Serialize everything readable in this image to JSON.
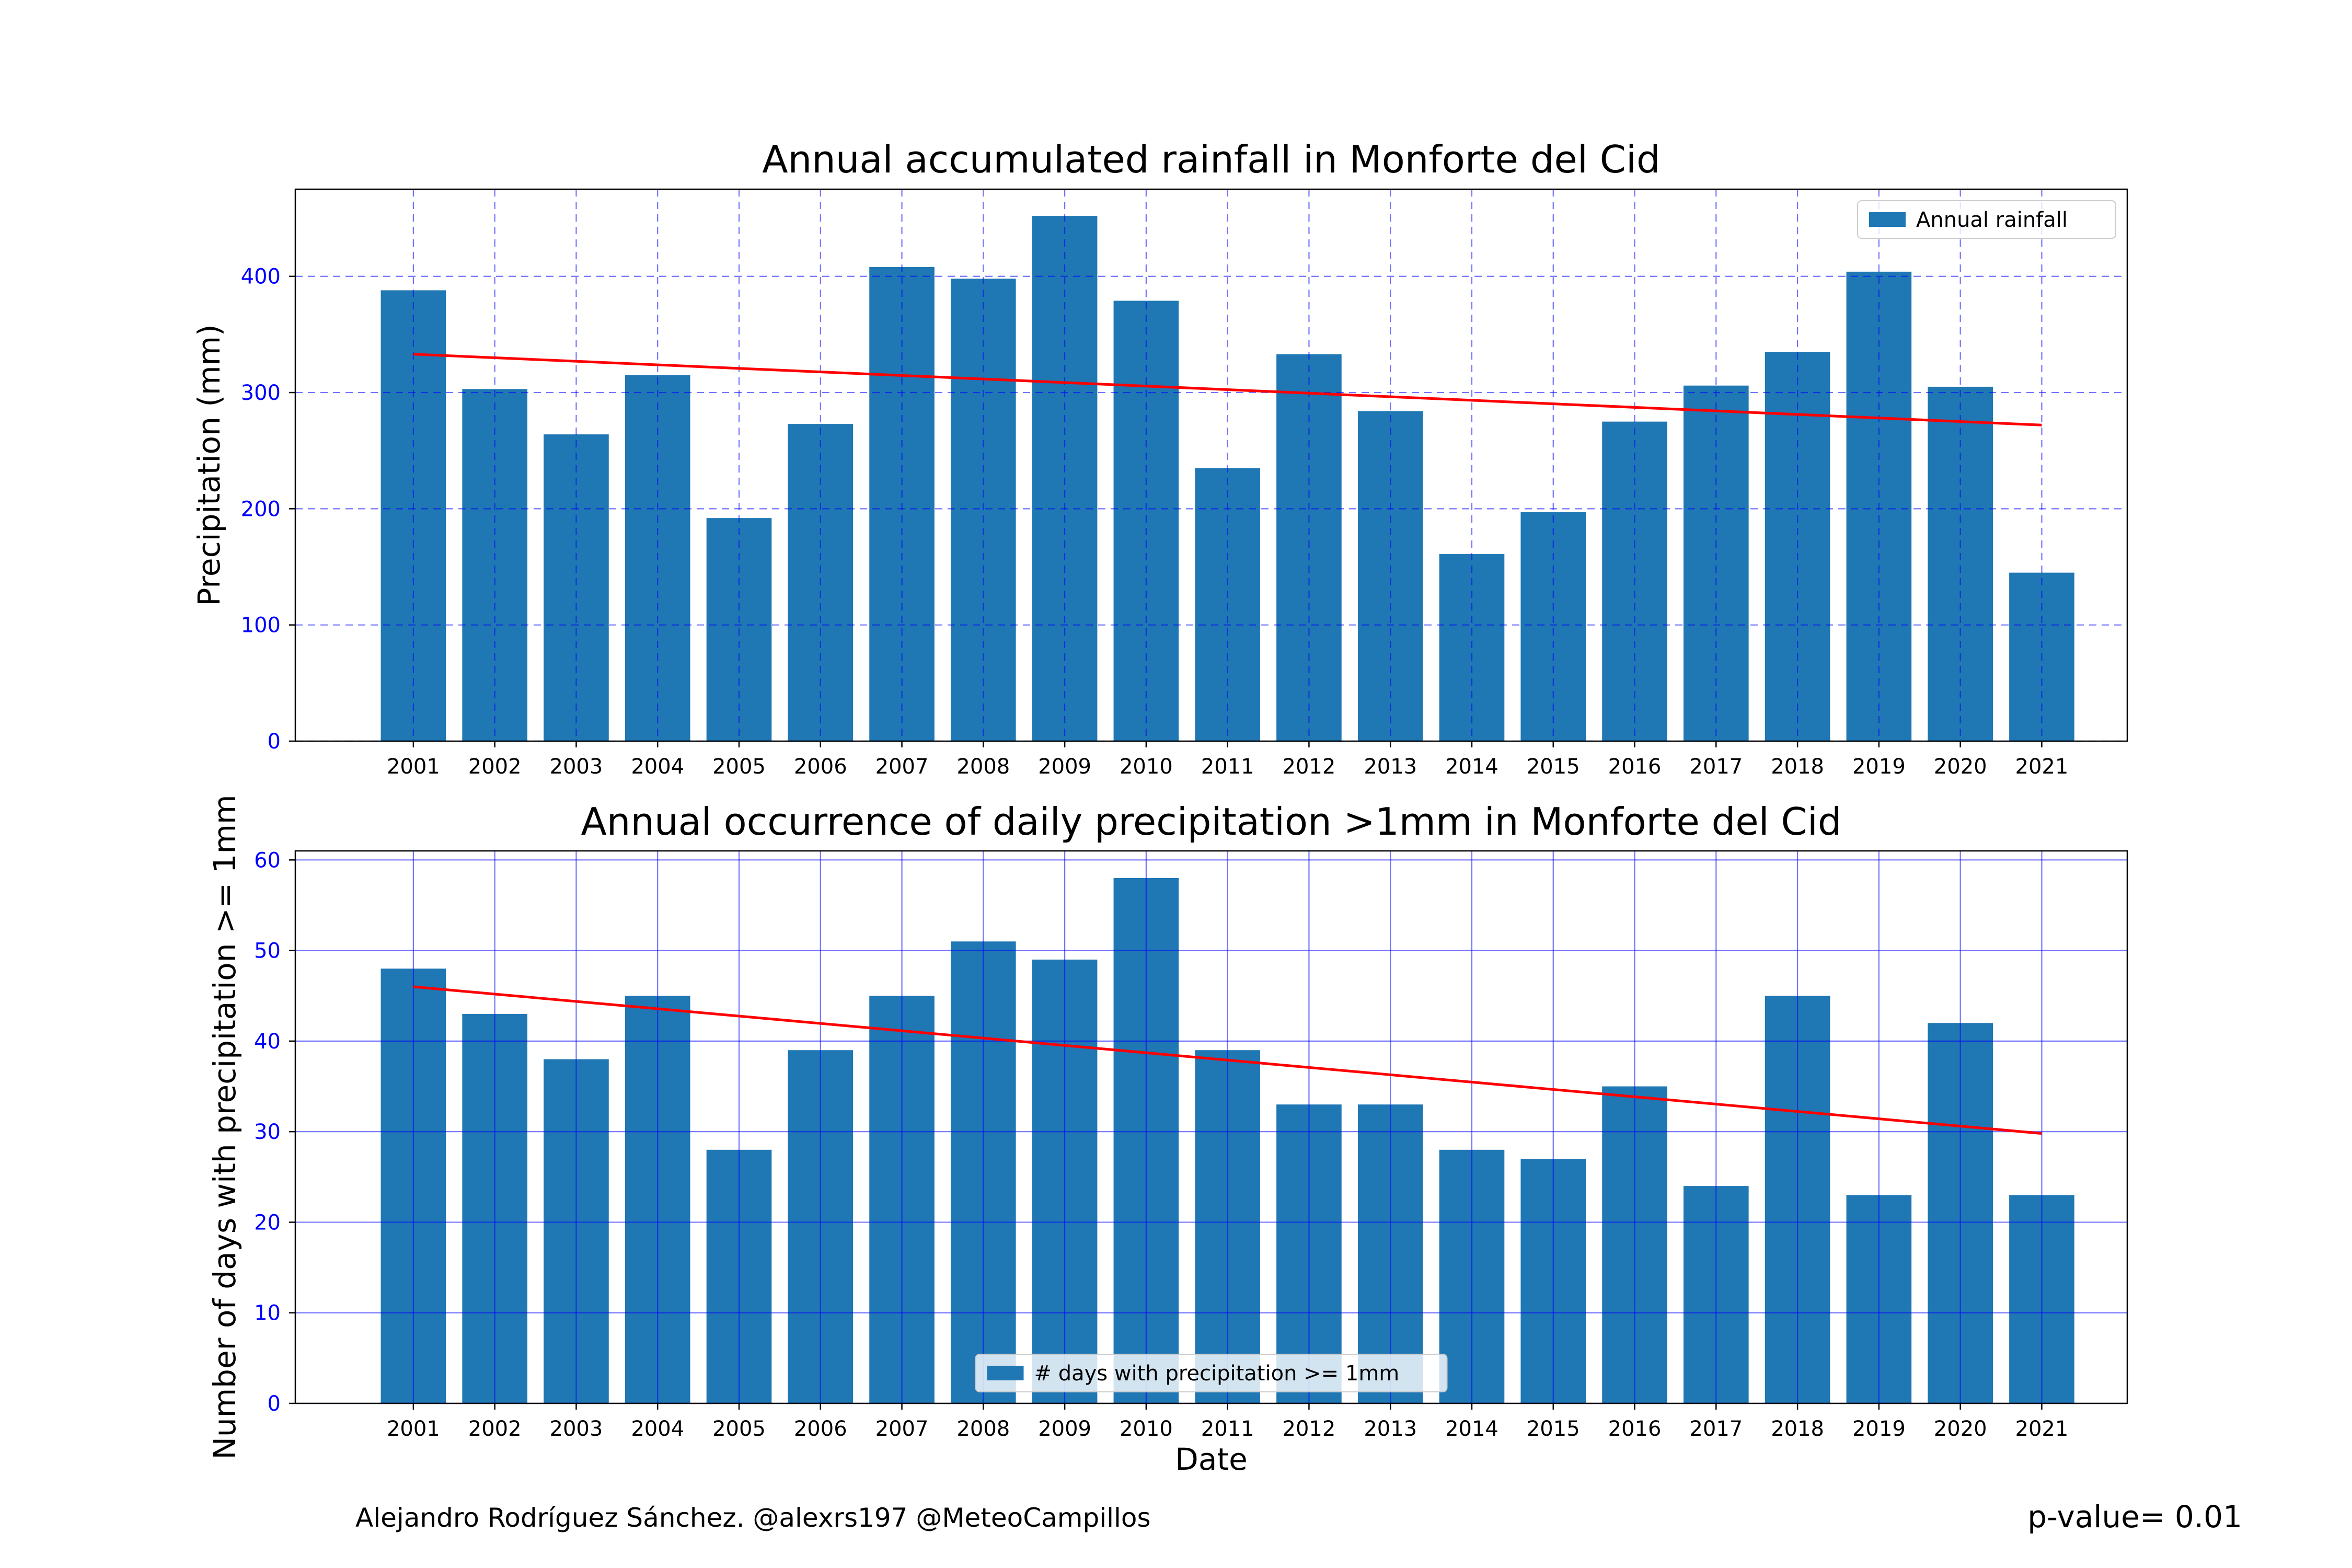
{
  "chart_data": [
    {
      "type": "bar",
      "title": "Annual accumulated rainfall in Monforte   del   Cid",
      "xlabel": "",
      "ylabel": "Precipitation (mm)",
      "categories": [
        "2001",
        "2002",
        "2003",
        "2004",
        "2005",
        "2006",
        "2007",
        "2008",
        "2009",
        "2010",
        "2011",
        "2012",
        "2013",
        "2014",
        "2015",
        "2016",
        "2017",
        "2018",
        "2019",
        "2020",
        "2021"
      ],
      "series": [
        {
          "name": "Annual rainfall",
          "values": [
            388,
            303,
            264,
            315,
            192,
            273,
            408,
            398,
            452,
            379,
            235,
            333,
            284,
            161,
            197,
            275,
            306,
            335,
            404,
            305,
            145
          ]
        }
      ],
      "trend": {
        "start": 333,
        "end": 272
      },
      "ylim": [
        0,
        475
      ],
      "yticks": [
        0,
        100,
        200,
        300,
        400
      ],
      "grid": "dashed",
      "legend": "top-right",
      "bar_color": "#1f77b4",
      "trend_color": "#ff0000",
      "grid_color": "#0000ff"
    },
    {
      "type": "bar",
      "title": "Annual occurrence of daily precipitation >1mm in Monforte   del   Cid",
      "xlabel": "Date",
      "ylabel": "Number of days with precipitation >= 1mm",
      "categories": [
        "2001",
        "2002",
        "2003",
        "2004",
        "2005",
        "2006",
        "2007",
        "2008",
        "2009",
        "2010",
        "2011",
        "2012",
        "2013",
        "2014",
        "2015",
        "2016",
        "2017",
        "2018",
        "2019",
        "2020",
        "2021"
      ],
      "series": [
        {
          "name": "# days with precipitation >= 1mm",
          "values": [
            48,
            43,
            38,
            45,
            28,
            39,
            45,
            51,
            49,
            58,
            39,
            33,
            33,
            28,
            27,
            35,
            24,
            45,
            23,
            42,
            23
          ]
        }
      ],
      "trend": {
        "start": 46,
        "end": 29.8
      },
      "ylim": [
        0,
        61
      ],
      "yticks": [
        0,
        10,
        20,
        30,
        40,
        50,
        60
      ],
      "grid": "solid",
      "legend": "bottom-center",
      "bar_color": "#1f77b4",
      "trend_color": "#ff0000",
      "grid_color": "#0000ff"
    }
  ],
  "footer": {
    "credit": "Alejandro Rodríguez Sánchez. @alexrs197 @MeteoCampillos",
    "pvalue": "p-value= 0.01"
  }
}
